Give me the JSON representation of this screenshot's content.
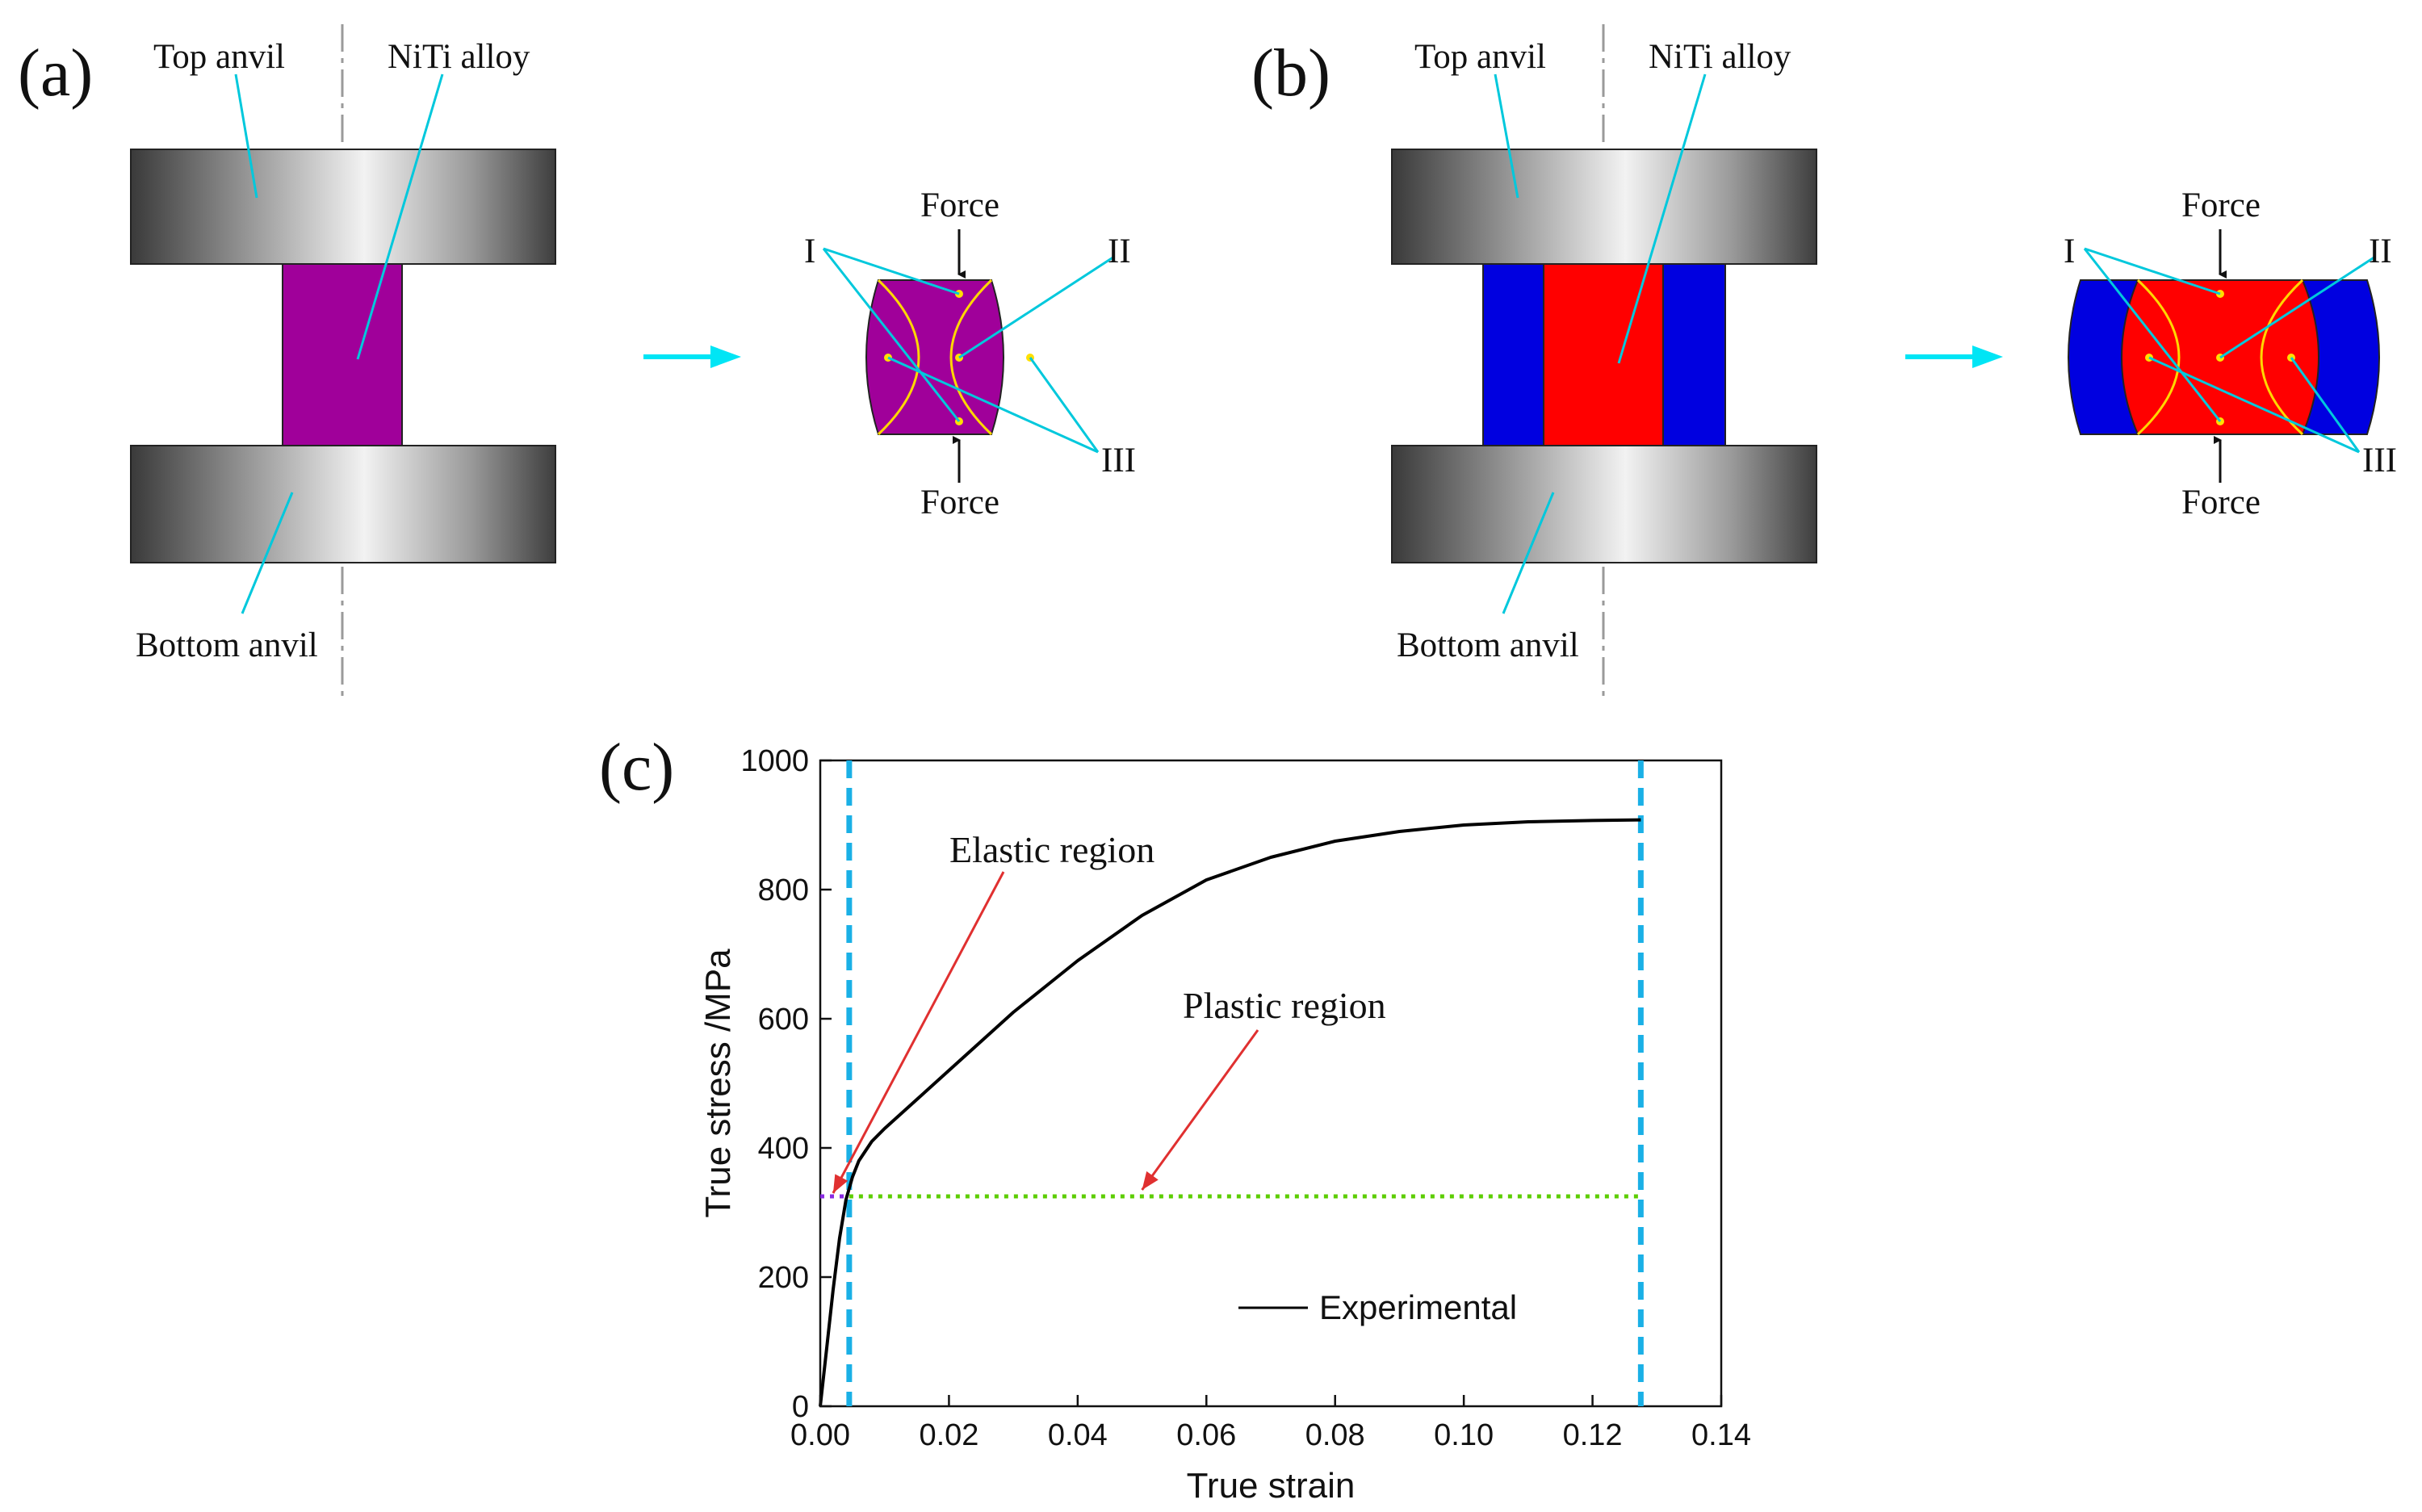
{
  "panels": {
    "a": {
      "label": "(a)",
      "top_anvil": "Top anvil",
      "alloy": "NiTi alloy",
      "bottom_anvil": "Bottom anvil",
      "force_top": "Force",
      "force_bottom": "Force",
      "zone_1": "I",
      "zone_2": "II",
      "zone_3": "III",
      "specimen_color": "#a0009a"
    },
    "b": {
      "label": "(b)",
      "top_anvil": "Top anvil",
      "alloy": "NiTi alloy",
      "bottom_anvil": "Bottom anvil",
      "force_top": "Force",
      "force_bottom": "Force",
      "zone_1": "I",
      "zone_2": "II",
      "zone_3": "III",
      "specimen_color": "#ff0000",
      "sleeve_color": "#0000e0"
    },
    "c": {
      "label": "(c)"
    }
  },
  "colors": {
    "leader_line": "#00c8dc",
    "flow_arrow": "#00e5f5",
    "zone_curve": "#ffd700",
    "anvil_dark": "#3a3a3a",
    "anvil_light": "#f2f2f2"
  },
  "chart_data": {
    "type": "line",
    "xlabel": "True strain",
    "ylabel": "True stress /MPa",
    "xlim": [
      0,
      0.14
    ],
    "ylim": [
      0,
      1000
    ],
    "xticks": [
      "0.00",
      "0.02",
      "0.04",
      "0.06",
      "0.08",
      "0.10",
      "0.12",
      "0.14"
    ],
    "yticks": [
      "0",
      "200",
      "400",
      "600",
      "800",
      "1000"
    ],
    "grid": false,
    "legend_position": "lower-right",
    "series": [
      {
        "name": "Experimental",
        "color": "#000000",
        "x": [
          0,
          0.001,
          0.002,
          0.003,
          0.004,
          0.005,
          0.006,
          0.008,
          0.01,
          0.015,
          0.02,
          0.03,
          0.04,
          0.05,
          0.06,
          0.07,
          0.08,
          0.09,
          0.1,
          0.11,
          0.12,
          0.1275
        ],
        "y": [
          0,
          90,
          180,
          260,
          320,
          355,
          380,
          410,
          430,
          475,
          520,
          610,
          690,
          760,
          815,
          850,
          875,
          890,
          900,
          905,
          907,
          908
        ]
      }
    ],
    "reference_lines": [
      {
        "orientation": "vertical",
        "x": 0.0045,
        "style": "dashed",
        "color": "#1ab0e6"
      },
      {
        "orientation": "vertical",
        "x": 0.1275,
        "style": "dashed",
        "color": "#1ab0e6"
      },
      {
        "orientation": "horizontal",
        "y": 325,
        "x_from": 0,
        "x_to": 0.0045,
        "style": "dotted",
        "color": "#8a2be2"
      },
      {
        "orientation": "horizontal",
        "y": 325,
        "x_from": 0.0045,
        "x_to": 0.1275,
        "style": "dotted",
        "color": "#5ccd00"
      }
    ],
    "annotations": [
      {
        "text": "Elastic region",
        "arrow_to_x": 0.002,
        "arrow_to_y": 325,
        "color": "#e03030"
      },
      {
        "text": "Plastic region",
        "arrow_to_x": 0.05,
        "arrow_to_y": 330,
        "color": "#e03030"
      }
    ]
  }
}
